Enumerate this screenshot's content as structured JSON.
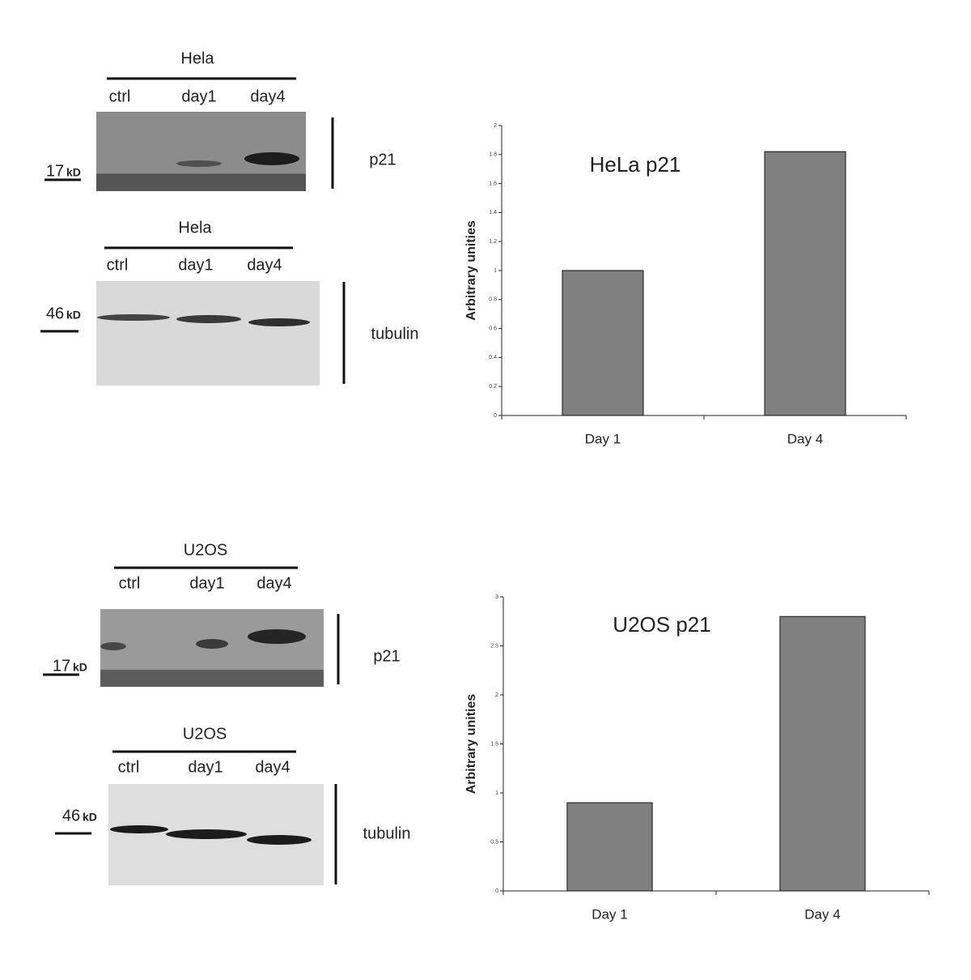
{
  "chart_data": [
    {
      "type": "bar",
      "title": "HeLa p21",
      "y_label": "Arbitrary unities",
      "categories": [
        "Day 1",
        "Day 4"
      ],
      "values": [
        1.0,
        1.82
      ],
      "color": "#808080",
      "ylim": [
        0,
        2
      ],
      "yticks": [
        0,
        0.2,
        0.4,
        0.6,
        0.8,
        1,
        1.2,
        1.4,
        1.6,
        1.8,
        2
      ]
    },
    {
      "type": "bar",
      "title": "U2OS p21",
      "y_label": "Arbitrary unities",
      "categories": [
        "Day 1",
        "Day 4"
      ],
      "values": [
        0.9,
        2.8
      ],
      "color": "#808080",
      "ylim": [
        0,
        3
      ],
      "yticks": [
        0,
        0.5,
        1,
        1.5,
        2,
        2.5,
        3
      ]
    }
  ],
  "blots": [
    {
      "cell_line": "Hela",
      "lanes": [
        "ctrl",
        "day1",
        "day4"
      ],
      "marker": "17",
      "unit": "kD",
      "protein": "p21"
    },
    {
      "cell_line": "Hela",
      "lanes": [
        "ctrl",
        "day1",
        "day4"
      ],
      "marker": "46",
      "unit": "kD",
      "protein": "tubulin"
    },
    {
      "cell_line": "U2OS",
      "lanes": [
        "ctrl",
        "day1",
        "day4"
      ],
      "marker": "17",
      "unit": "kD",
      "protein": "p21"
    },
    {
      "cell_line": "U2OS",
      "lanes": [
        "ctrl",
        "day1",
        "day4"
      ],
      "marker": "46",
      "unit": "kD",
      "protein": "tubulin"
    }
  ]
}
